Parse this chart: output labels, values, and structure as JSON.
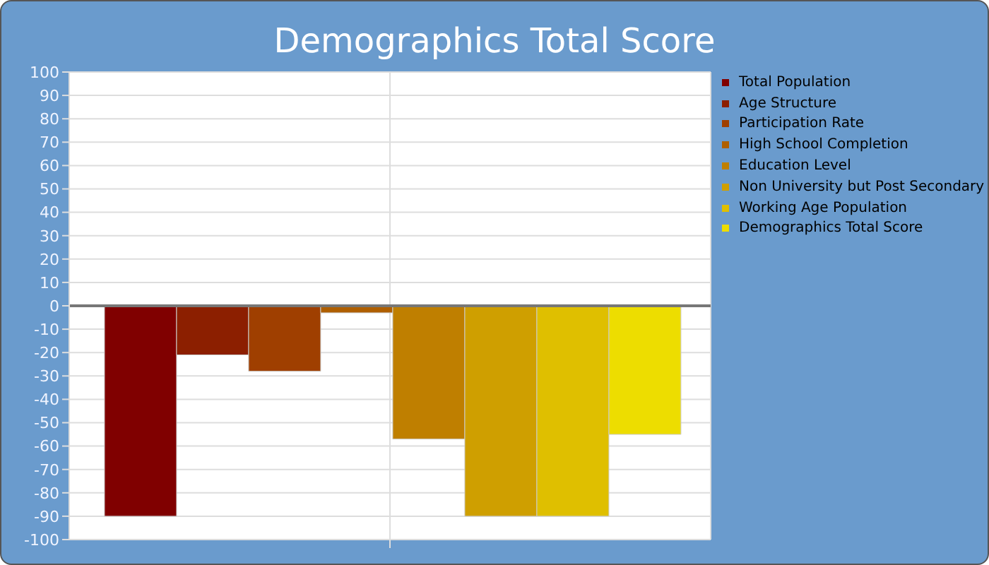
{
  "chart_data": {
    "type": "bar",
    "title": "Demographics Total Score",
    "categories": [
      null
    ],
    "series": [
      {
        "name": "Total Population",
        "color": "#800000",
        "values": [
          -90
        ]
      },
      {
        "name": "Age Structure",
        "color": "#8c1f00",
        "values": [
          -21
        ]
      },
      {
        "name": "Participation Rate",
        "color": "#9f3f00",
        "values": [
          -28
        ]
      },
      {
        "name": "High School Completion",
        "color": "#af5f00",
        "values": [
          -3
        ]
      },
      {
        "name": "Education Level",
        "color": "#bf7f00",
        "values": [
          -57
        ]
      },
      {
        "name": "Non University but Post Secondary",
        "color": "#cf9f00",
        "values": [
          -90
        ]
      },
      {
        "name": "Working Age Population",
        "color": "#dfbf00",
        "values": [
          -90
        ]
      },
      {
        "name": "Demographics Total Score",
        "color": "#eddd00",
        "values": [
          -55
        ]
      }
    ],
    "ylim": [
      -100,
      100
    ],
    "yticks": [
      -100,
      -90,
      -80,
      -70,
      -60,
      -50,
      -40,
      -30,
      -20,
      -10,
      0,
      10,
      20,
      30,
      40,
      50,
      60,
      70,
      80,
      90,
      100
    ],
    "grid": true,
    "legend": "top right"
  }
}
